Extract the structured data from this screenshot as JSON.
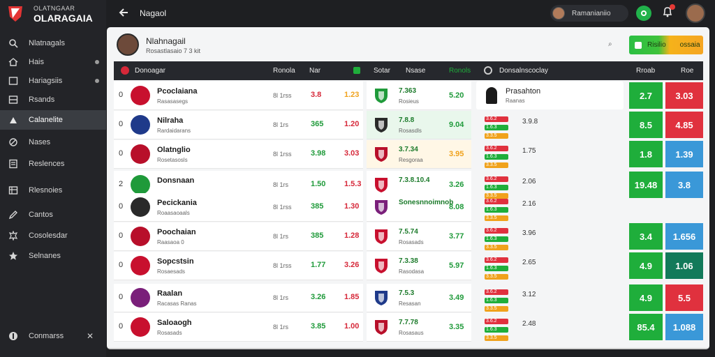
{
  "brand": {
    "line1": "OLATNGAAR",
    "line2": "OLARAGAIA",
    "accent": "#e23434"
  },
  "sidebar": {
    "items": [
      {
        "label": "Nlatnagals",
        "icon": "search-icon",
        "dot": false
      },
      {
        "label": "Hais",
        "icon": "home-icon",
        "dot": true
      },
      {
        "label": "Hariagsiis",
        "icon": "list-icon",
        "dot": true
      },
      {
        "label": "Rsands",
        "icon": "grid-icon",
        "dot": false
      },
      {
        "label": "Calanelite",
        "icon": "trophy-icon",
        "dot": false,
        "active": true
      },
      {
        "label": "Nases",
        "icon": "pencil-icon",
        "dot": false
      },
      {
        "label": "Reslences",
        "icon": "document-icon",
        "dot": false
      },
      {
        "label": "Rlesnoies",
        "icon": "table-icon",
        "dot": false
      },
      {
        "label": "Cantos",
        "icon": "edit-icon",
        "dot": false
      },
      {
        "label": "Cosolesdar",
        "icon": "settings-icon",
        "dot": false
      },
      {
        "label": "Selnanes",
        "icon": "star-icon",
        "dot": false
      }
    ],
    "footer": {
      "label": "Conmarss",
      "icon": "globe-icon"
    }
  },
  "topbar": {
    "title": "Nagaol",
    "user": "Ramanianiio"
  },
  "panel": {
    "name": "Nlahnagail",
    "sub": "Rosastlasaio 7 3 kit",
    "button_label": "Risilio",
    "button_label2": "ossaia"
  },
  "header": {
    "c1": "Donoagar",
    "c2": "Ronola",
    "c3": "Nar",
    "c4": "Sotar",
    "c5": "Nsase",
    "c6": "Ronols",
    "c7": "Donsalnscoclay",
    "c8": "Rroab",
    "c9": "Roe"
  },
  "rows": [
    {
      "rank": "0",
      "name": "Pcoclaiana",
      "sub": "Rasasasegs",
      "tag": "8l 1rss",
      "v1": "3.8",
      "v2": "1.23",
      "v1c": "#d62839",
      "v2c": "#f0a21c",
      "mt1": "7.363",
      "mt2": "Rosieus",
      "mv": "5.20",
      "mvc": "#1f9a3a",
      "rname": "Prasahton",
      "rsub": "Raanas",
      "rv": "",
      "a": "2.7",
      "b": "3.03",
      "ac": "#1fae3b",
      "bc": "#e0313e"
    },
    {
      "rank": "0",
      "name": "Nilraha",
      "sub": "Rardaidarans",
      "tag": "8l 1rs",
      "v1": "365",
      "v2": "1.20",
      "v1c": "#1f9a3a",
      "v2c": "#d62839",
      "mt1": "7.8.8",
      "mt2": "Rosasdls",
      "mv": "9.04",
      "mvc": "#1f9a3a",
      "rname": "",
      "rsub": "",
      "rv": "3.9.8",
      "a": "8.5",
      "b": "4.85",
      "ac": "#1fae3b",
      "bc": "#e0313e"
    },
    {
      "rank": "0",
      "name": "Olatnglio",
      "sub": "Rosetasosls",
      "tag": "8l 1rss",
      "v1": "3.98",
      "v2": "3.03",
      "v1c": "#1f9a3a",
      "v2c": "#d62839",
      "mt1": "3.7.34",
      "mt2": "Resgoraa",
      "mv": "3.95",
      "mvc": "#f0a21c",
      "rname": "",
      "rsub": "",
      "rv": "1.75",
      "a": "1.8",
      "b": "1.39",
      "ac": "#1fae3b",
      "bc": "#3a98d8"
    },
    {
      "rank": "2",
      "name": "Donsnaan",
      "sub": "",
      "tag": "8l 1rs",
      "v1": "1.50",
      "v2": "1.5.3",
      "v1c": "#1f9a3a",
      "v2c": "#d62839",
      "mt1": "7.3.8.10.4",
      "mt2": "",
      "mv": "3.26",
      "mvc": "#1f9a3a",
      "rname": "",
      "rsub": "",
      "rv": "2.06",
      "a": "19.48",
      "b": "3.8",
      "ac": "#1fae3b",
      "bc": "#3a98d8"
    },
    {
      "rank": "0",
      "name": "Pecickania",
      "sub": "Roaasaoaals",
      "tag": "8l 1rss",
      "v1": "385",
      "v2": "1.30",
      "v1c": "#1f9a3a",
      "v2c": "#d62839",
      "mt1": "Sonesnnoimnob",
      "mt2": "",
      "mv": "8.08",
      "mvc": "#1f9a3a",
      "rname": "",
      "rsub": "",
      "rv": "2.16",
      "a": "",
      "b": "",
      "ac": "#1fae3b",
      "bc": "#3a98d8"
    },
    {
      "rank": "0",
      "name": "Poochaian",
      "sub": "Raasaoa 0",
      "tag": "8l 1rs",
      "v1": "385",
      "v2": "1.28",
      "v1c": "#1f9a3a",
      "v2c": "#d62839",
      "mt1": "7.5.74",
      "mt2": "Rosasads",
      "mv": "3.77",
      "mvc": "#1f9a3a",
      "rname": "",
      "rsub": "",
      "rv": "3.96",
      "a": "3.4",
      "b": "1.656",
      "ac": "#1fae3b",
      "bc": "#3a98d8"
    },
    {
      "rank": "0",
      "name": "Sopcstsin",
      "sub": "Rosaesads",
      "tag": "8l 1rss",
      "v1": "1.77",
      "v2": "3.26",
      "v1c": "#1f9a3a",
      "v2c": "#d62839",
      "mt1": "7.3.38",
      "mt2": "Rasodasa",
      "mv": "5.97",
      "mvc": "#1f9a3a",
      "rname": "",
      "rsub": "",
      "rv": "2.65",
      "a": "4.9",
      "b": "1.06",
      "ac": "#1fae3b",
      "bc": "#127a5a"
    },
    {
      "rank": "0",
      "name": "Raalan",
      "sub": "Racasas Ranas",
      "tag": "8l 1rs",
      "v1": "3.26",
      "v2": "1.85",
      "v1c": "#1f9a3a",
      "v2c": "#d62839",
      "mt1": "7.5.3",
      "mt2": "Resasan",
      "mv": "3.49",
      "mvc": "#1f9a3a",
      "rname": "",
      "rsub": "",
      "rv": "3.12",
      "a": "4.9",
      "b": "5.5",
      "ac": "#1fae3b",
      "bc": "#e0313e"
    },
    {
      "rank": "0",
      "name": "Saloaogh",
      "sub": "Rosasads",
      "tag": "8l 1rs",
      "v1": "3.85",
      "v2": "1.00",
      "v1c": "#1f9a3a",
      "v2c": "#d62839",
      "mt1": "7.7.78",
      "mt2": "Rosasaus",
      "mv": "3.35",
      "mvc": "#1f9a3a",
      "rname": "",
      "rsub": "",
      "rv": "2.48",
      "a": "85.4",
      "b": "1.088",
      "ac": "#1fae3b",
      "bc": "#3a98d8"
    }
  ],
  "chip_colors": [
    "#e0313e",
    "#1fae3b",
    "#f0a21c"
  ],
  "chip_labels": [
    "3.6.2",
    "1.6.3",
    "3.3.5"
  ]
}
